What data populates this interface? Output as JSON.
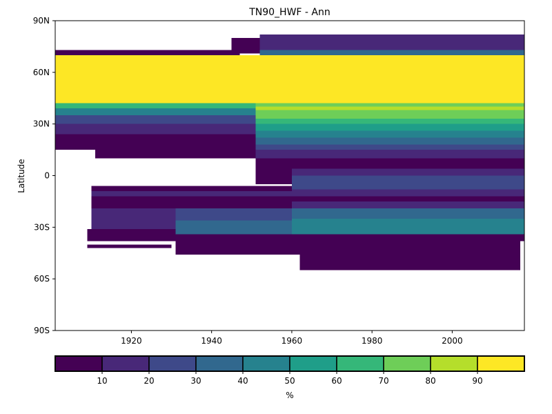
{
  "chart_data": {
    "type": "heatmap",
    "title": "TN90_HWF - Ann",
    "xlabel": "",
    "ylabel": "Latitude",
    "xlim": [
      1901,
      2018
    ],
    "ylim": [
      -90,
      90
    ],
    "x_ticks": [
      1920,
      1940,
      1960,
      1980,
      2000
    ],
    "y_ticks": [
      {
        "value": 90,
        "label": "90N"
      },
      {
        "value": 60,
        "label": "60N"
      },
      {
        "value": 30,
        "label": "30N"
      },
      {
        "value": 0,
        "label": "0"
      },
      {
        "value": -30,
        "label": "30S"
      },
      {
        "value": -60,
        "label": "60S"
      },
      {
        "value": -90,
        "label": "90S"
      }
    ],
    "colorbar": {
      "label": "%",
      "ticks": [
        10,
        20,
        30,
        40,
        50,
        60,
        70,
        80,
        90
      ],
      "range": [
        0,
        100
      ],
      "bins": [
        {
          "from": 0,
          "to": 10,
          "color": "#440154"
        },
        {
          "from": 10,
          "to": 20,
          "color": "#482878"
        },
        {
          "from": 20,
          "to": 30,
          "color": "#3e4989"
        },
        {
          "from": 30,
          "to": 40,
          "color": "#31688e"
        },
        {
          "from": 40,
          "to": 50,
          "color": "#26828e"
        },
        {
          "from": 50,
          "to": 60,
          "color": "#1f9e89"
        },
        {
          "from": 60,
          "to": 70,
          "color": "#35b779"
        },
        {
          "from": 70,
          "to": 80,
          "color": "#6ece58"
        },
        {
          "from": 80,
          "to": 90,
          "color": "#b5de2b"
        },
        {
          "from": 90,
          "to": 100,
          "color": "#fde725"
        }
      ]
    },
    "cells": [
      {
        "x0": 1901,
        "x1": 1947,
        "y0": 70,
        "y1": 73,
        "value": 5
      },
      {
        "x0": 1945,
        "x1": 1952,
        "y0": 71,
        "y1": 80,
        "value": 5
      },
      {
        "x0": 1952,
        "x1": 2018,
        "y0": 73,
        "y1": 82,
        "value": 15
      },
      {
        "x0": 1952,
        "x1": 2018,
        "y0": 70,
        "y1": 73,
        "value": 35
      },
      {
        "x0": 1901,
        "x1": 2018,
        "y0": 42,
        "y1": 70,
        "value": 95
      },
      {
        "x0": 1901,
        "x1": 1951,
        "y0": 39,
        "y1": 42,
        "value": 65
      },
      {
        "x0": 1901,
        "x1": 1951,
        "y0": 35,
        "y1": 39,
        "value": 45
      },
      {
        "x0": 1901,
        "x1": 1951,
        "y0": 30,
        "y1": 35,
        "value": 25
      },
      {
        "x0": 1901,
        "x1": 1951,
        "y0": 24,
        "y1": 30,
        "value": 15
      },
      {
        "x0": 1901,
        "x1": 1951,
        "y0": 15,
        "y1": 24,
        "value": 5
      },
      {
        "x0": 1911,
        "x1": 1951,
        "y0": 10,
        "y1": 15,
        "value": 5
      },
      {
        "x0": 1951,
        "x1": 2018,
        "y0": 40,
        "y1": 42,
        "value": 75
      },
      {
        "x0": 1951,
        "x1": 2018,
        "y0": 38,
        "y1": 40,
        "value": 85
      },
      {
        "x0": 1951,
        "x1": 2018,
        "y0": 33,
        "y1": 38,
        "value": 75
      },
      {
        "x0": 1951,
        "x1": 2018,
        "y0": 30,
        "y1": 33,
        "value": 65
      },
      {
        "x0": 1951,
        "x1": 2018,
        "y0": 26,
        "y1": 30,
        "value": 55
      },
      {
        "x0": 1951,
        "x1": 2018,
        "y0": 22,
        "y1": 26,
        "value": 45
      },
      {
        "x0": 1951,
        "x1": 2018,
        "y0": 18,
        "y1": 22,
        "value": 35
      },
      {
        "x0": 1951,
        "x1": 2018,
        "y0": 15,
        "y1": 18,
        "value": 25
      },
      {
        "x0": 1951,
        "x1": 2018,
        "y0": 10,
        "y1": 15,
        "value": 15
      },
      {
        "x0": 1951,
        "x1": 2018,
        "y0": 4,
        "y1": 10,
        "value": 5
      },
      {
        "x0": 1951,
        "x1": 1960,
        "y0": -5,
        "y1": 4,
        "value": 5
      },
      {
        "x0": 1960,
        "x1": 2018,
        "y0": 0,
        "y1": 4,
        "value": 15
      },
      {
        "x0": 1960,
        "x1": 2018,
        "y0": -8,
        "y1": 0,
        "value": 25
      },
      {
        "x0": 1960,
        "x1": 2018,
        "y0": -12,
        "y1": -8,
        "value": 15
      },
      {
        "x0": 1910,
        "x1": 1960,
        "y0": -9,
        "y1": -6,
        "value": 5
      },
      {
        "x0": 1910,
        "x1": 1960,
        "y0": -12,
        "y1": -9,
        "value": 15
      },
      {
        "x0": 1910,
        "x1": 1960,
        "y0": -19,
        "y1": -12,
        "value": 5
      },
      {
        "x0": 1910,
        "x1": 1931,
        "y0": -31,
        "y1": -19,
        "value": 15
      },
      {
        "x0": 1931,
        "x1": 1960,
        "y0": -26,
        "y1": -19,
        "value": 25
      },
      {
        "x0": 1931,
        "x1": 1960,
        "y0": -34,
        "y1": -26,
        "value": 35
      },
      {
        "x0": 1960,
        "x1": 2018,
        "y0": -15,
        "y1": -12,
        "value": 5
      },
      {
        "x0": 1960,
        "x1": 2018,
        "y0": -19,
        "y1": -15,
        "value": 15
      },
      {
        "x0": 1960,
        "x1": 2018,
        "y0": -25,
        "y1": -19,
        "value": 35
      },
      {
        "x0": 1960,
        "x1": 2018,
        "y0": -34,
        "y1": -25,
        "value": 45
      },
      {
        "x0": 1909,
        "x1": 1931,
        "y0": -38,
        "y1": -31,
        "value": 5
      },
      {
        "x0": 1931,
        "x1": 2018,
        "y0": -38,
        "y1": -34,
        "value": 5
      },
      {
        "x0": 1909,
        "x1": 1930,
        "y0": -42,
        "y1": -40,
        "value": 5
      },
      {
        "x0": 1931,
        "x1": 1962,
        "y0": -46,
        "y1": -38,
        "value": 5
      },
      {
        "x0": 1962,
        "x1": 2017,
        "y0": -55,
        "y1": -38,
        "value": 5
      }
    ]
  }
}
